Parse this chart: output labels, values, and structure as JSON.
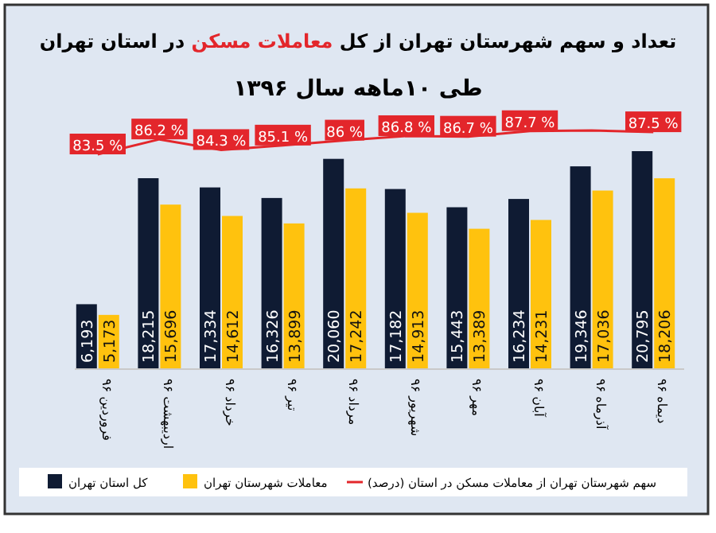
{
  "chart_data": {
    "type": "bar",
    "title": "تعداد و سهم شهرستان تهران از کل **معاملات مسکن** در استان تهران",
    "subtitle": "طی ۱۰ماهه سال ۱۳۹۶",
    "categories": [
      "فروردین ۹۶",
      "اردیبهشت ۹۶",
      "خرداد ۹۶",
      "تیر ۹۶",
      "مرداد ۹۶",
      "شهریور ۹۶",
      "مهر ۹۶",
      "آبان ۹۶",
      "آذرماه ۹۶",
      "دیماه ۹۶"
    ],
    "series": [
      {
        "name": "کل استان تهران",
        "color": "#0f1b33",
        "values": [
          6193,
          18215,
          17334,
          16326,
          20060,
          17182,
          15443,
          16234,
          19346,
          20795
        ],
        "value_labels": [
          "6,193",
          "18,215",
          "17,334",
          "16,326",
          "20,060",
          "17,182",
          "15,443",
          "16,234",
          "19,346",
          "20,795"
        ]
      },
      {
        "name": "معاملات شهرستان تهران",
        "color": "#ffc20e",
        "values": [
          5173,
          15696,
          14612,
          13899,
          17242,
          14913,
          13389,
          14231,
          17036,
          18206
        ],
        "value_labels": [
          "5,173",
          "15,696",
          "14,612",
          "13,899",
          "17,242",
          "14,913",
          "13,389",
          "14,231",
          "17,036",
          "18,206"
        ]
      },
      {
        "name": "سهم شهرستان تهران از معاملات مسکن  در استان (درصد)",
        "type": "line",
        "axis": "y2",
        "color": "#e3262b",
        "values": [
          83.5,
          86.2,
          84.3,
          85.1,
          86,
          86.8,
          86.7,
          87.7,
          87.8,
          87.5
        ],
        "value_labels": [
          "83.5 %",
          "86.2 %",
          "84.3 %",
          "85.1 %",
          "86 %",
          "86.8 %",
          "86.7 %",
          "87.7 %",
          null,
          "87.5 %"
        ]
      }
    ],
    "legend": "bottom"
  }
}
